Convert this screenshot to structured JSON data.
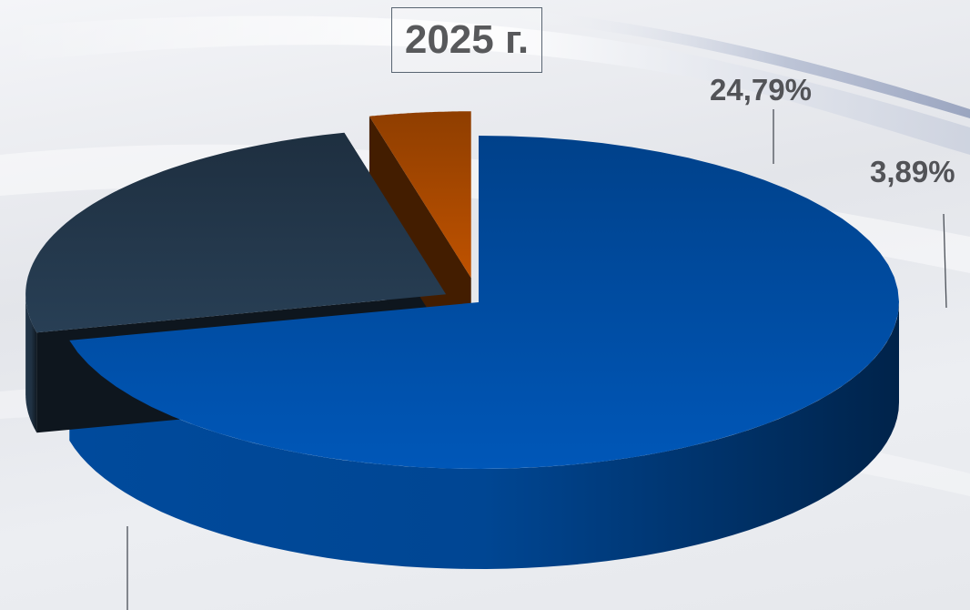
{
  "chart_data": {
    "type": "pie",
    "title": "2025 г.",
    "values": [
      71.32,
      24.79,
      3.89
    ],
    "data_labels": [
      "",
      "24,79%",
      "3,89%"
    ],
    "colors": [
      "#0057b8",
      "#283f55",
      "#bf5200"
    ],
    "style": "3d-exploded"
  }
}
